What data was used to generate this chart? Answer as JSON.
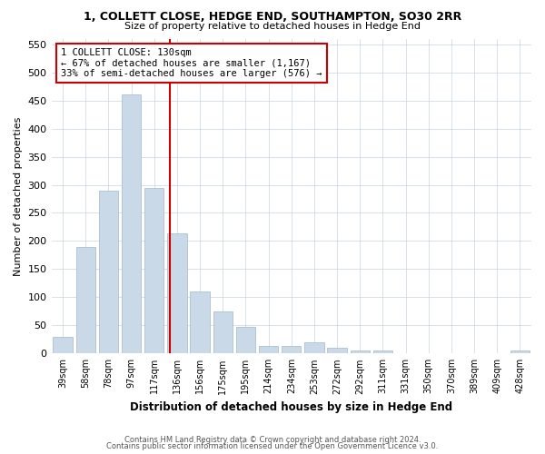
{
  "title": "1, COLLETT CLOSE, HEDGE END, SOUTHAMPTON, SO30 2RR",
  "subtitle": "Size of property relative to detached houses in Hedge End",
  "xlabel": "Distribution of detached houses by size in Hedge End",
  "ylabel": "Number of detached properties",
  "bar_labels": [
    "39sqm",
    "58sqm",
    "78sqm",
    "97sqm",
    "117sqm",
    "136sqm",
    "156sqm",
    "175sqm",
    "195sqm",
    "214sqm",
    "234sqm",
    "253sqm",
    "272sqm",
    "292sqm",
    "311sqm",
    "331sqm",
    "350sqm",
    "370sqm",
    "389sqm",
    "409sqm",
    "428sqm"
  ],
  "bar_values": [
    30,
    190,
    290,
    460,
    295,
    213,
    110,
    75,
    48,
    13,
    13,
    20,
    10,
    6,
    5,
    0,
    0,
    0,
    0,
    0,
    5
  ],
  "bar_color": "#c9d9e8",
  "bar_edgecolor": "#a0b8cc",
  "property_label": "1 COLLETT CLOSE: 130sqm",
  "annotation_line1": "← 67% of detached houses are smaller (1,167)",
  "annotation_line2": "33% of semi-detached houses are larger (576) →",
  "vline_color": "#cc0000",
  "annotation_box_edgecolor": "#cc0000",
  "vline_x_index": 4.68,
  "ylim": [
    0,
    560
  ],
  "yticks": [
    0,
    50,
    100,
    150,
    200,
    250,
    300,
    350,
    400,
    450,
    500,
    550
  ],
  "bg_color": "#ffffff",
  "grid_color": "#c8d4e0",
  "footer_line1": "Contains HM Land Registry data © Crown copyright and database right 2024.",
  "footer_line2": "Contains public sector information licensed under the Open Government Licence v3.0."
}
